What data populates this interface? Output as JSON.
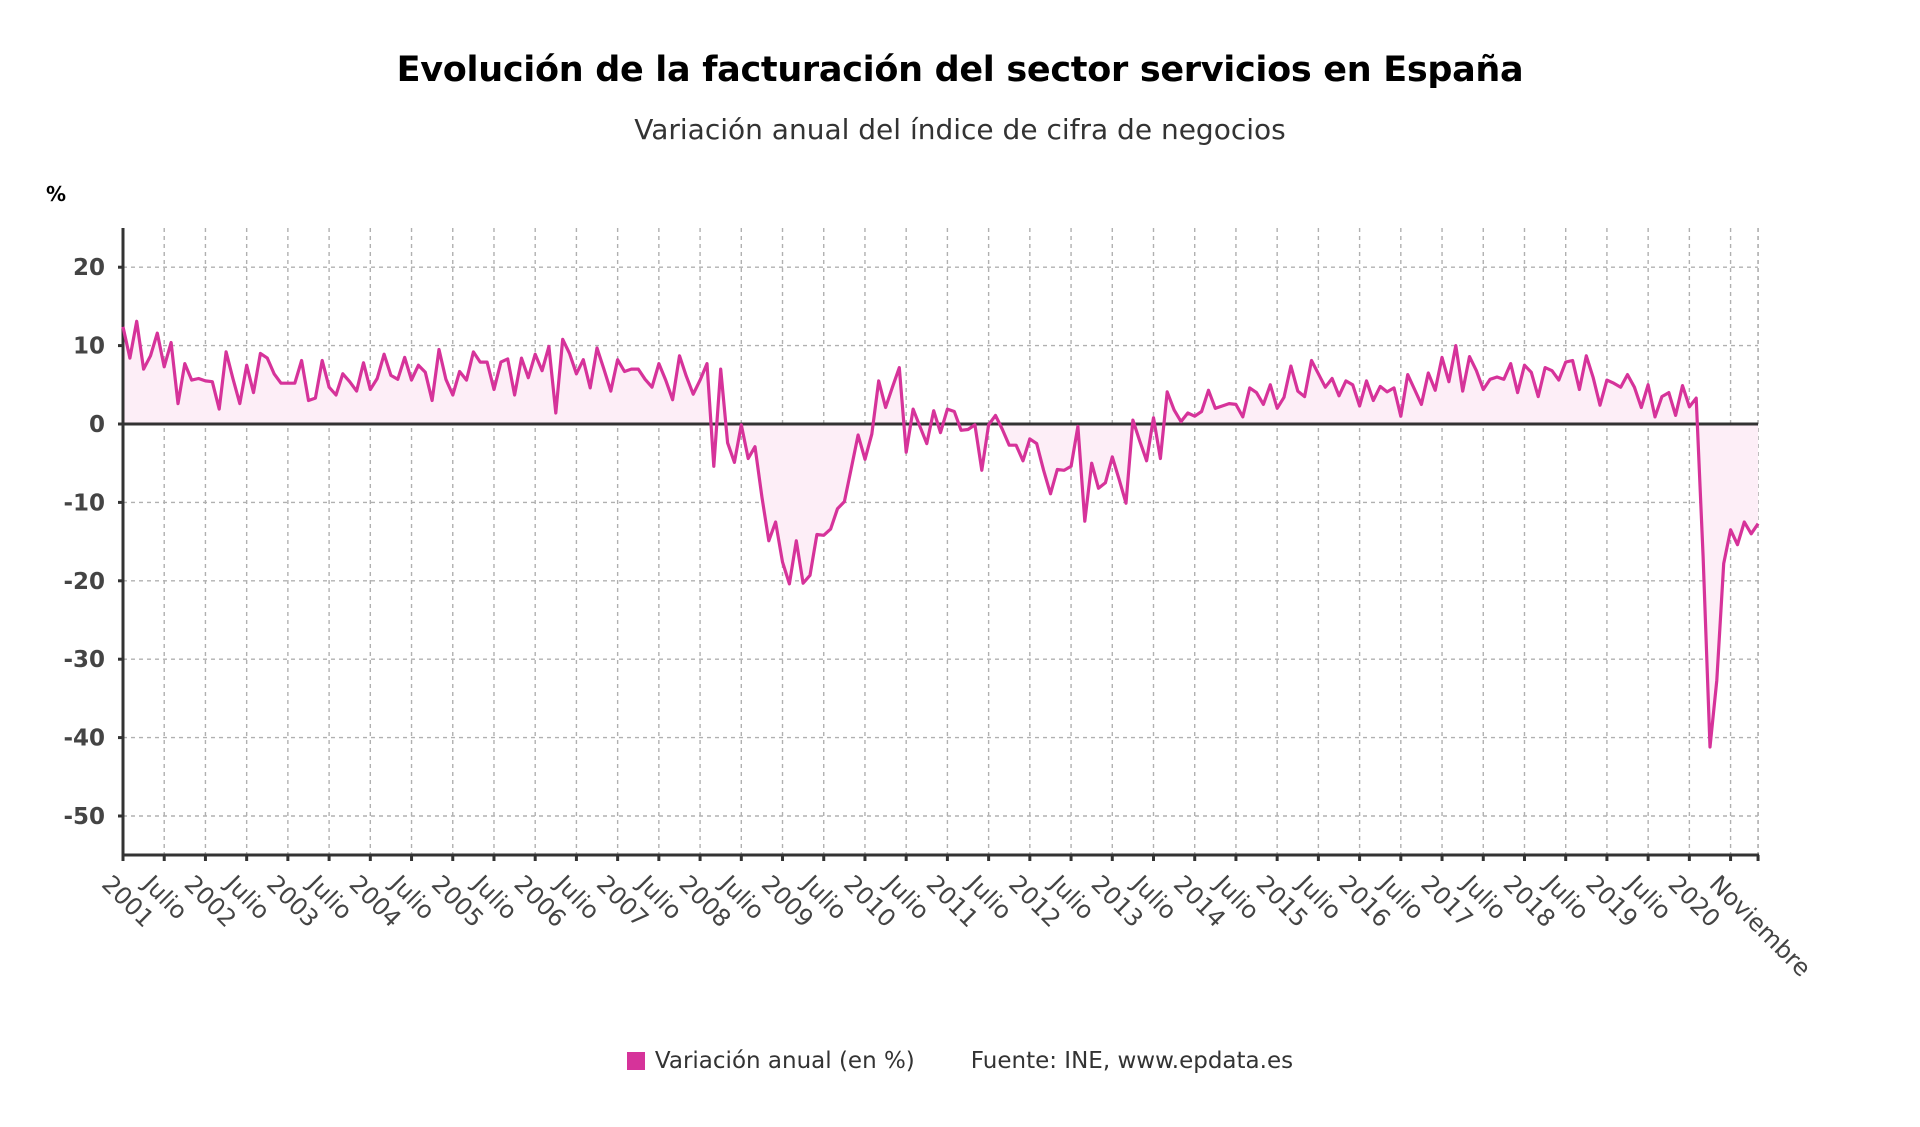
{
  "colors": {
    "line": "#d6339a",
    "fill": "#fdeef7",
    "axis": "#333333",
    "grid": "#b0b0b0",
    "zero": "#333333",
    "tick_label": "#444444"
  },
  "legend": {
    "series_label": "Variación anual (en %)",
    "source_label": "Fuente: INE, www.epdata.es"
  },
  "chart_data": {
    "type": "area",
    "title": "Evolución de la facturación del sector servicios en España",
    "subtitle": "Variación anual del índice de cifra de negocios",
    "ylabel": "%",
    "xlabel": "",
    "ylim": [
      -55,
      25
    ],
    "yticks": [
      20,
      10,
      0,
      -10,
      -20,
      -30,
      -40,
      -50
    ],
    "grid": true,
    "legend_position": "bottom",
    "x_start": "2001-01",
    "x_end": "2020-11",
    "x_frequency": "monthly",
    "xtick_labels": [
      "2001",
      "Julio",
      "2002",
      "Julio",
      "2003",
      "Julio",
      "2004",
      "Julio",
      "2005",
      "Julio",
      "2006",
      "Julio",
      "2007",
      "Julio",
      "2008",
      "Julio",
      "2009",
      "Julio",
      "2010",
      "Julio",
      "2011",
      "Julio",
      "2012",
      "Julio",
      "2013",
      "Julio",
      "2014",
      "Julio",
      "2015",
      "Julio",
      "2016",
      "Julio",
      "2017",
      "Julio",
      "2018",
      "Julio",
      "2019",
      "Julio",
      "2020",
      "Noviembre"
    ],
    "series": [
      {
        "name": "Variación anual (en %)",
        "values": [
          12.4,
          8.4,
          13.1,
          7.0,
          8.7,
          11.6,
          7.3,
          10.4,
          2.6,
          7.7,
          5.6,
          5.8,
          5.5,
          5.4,
          1.9,
          9.2,
          5.8,
          2.6,
          7.5,
          4.0,
          9.0,
          8.4,
          6.4,
          5.2,
          5.2,
          5.2,
          8.1,
          3.0,
          3.3,
          8.1,
          4.7,
          3.7,
          6.4,
          5.4,
          4.2,
          7.8,
          4.4,
          5.8,
          8.9,
          6.2,
          5.7,
          8.5,
          5.6,
          7.5,
          6.6,
          3.0,
          9.5,
          5.7,
          3.7,
          6.7,
          5.6,
          9.2,
          7.9,
          7.9,
          4.4,
          7.9,
          8.3,
          3.7,
          8.4,
          5.9,
          8.9,
          6.8,
          9.9,
          1.4,
          10.8,
          9.0,
          6.4,
          8.2,
          4.6,
          9.7,
          7.0,
          4.2,
          8.2,
          6.7,
          7.0,
          7.0,
          5.7,
          4.7,
          7.7,
          5.6,
          3.1,
          8.7,
          6.1,
          3.8,
          5.6,
          7.7,
          -5.4,
          7.0,
          -2.4,
          -4.9,
          -0.1,
          -4.4,
          -2.9,
          -9.3,
          -14.9,
          -12.5,
          -17.6,
          -20.4,
          -14.9,
          -20.3,
          -19.3,
          -14.1,
          -14.2,
          -13.4,
          -10.8,
          -9.9,
          -5.7,
          -1.4,
          -4.5,
          -1.3,
          5.5,
          2.1,
          4.7,
          7.2,
          -3.6,
          1.9,
          -0.3,
          -2.5,
          1.7,
          -1.1,
          1.9,
          1.6,
          -0.8,
          -0.7,
          -0.1,
          -5.9,
          -0.1,
          1.1,
          -0.7,
          -2.7,
          -2.7,
          -4.7,
          -1.9,
          -2.5,
          -5.9,
          -8.9,
          -5.8,
          -5.9,
          -5.4,
          -0.3,
          -12.4,
          -5.0,
          -8.2,
          -7.5,
          -4.2,
          -7.1,
          -10.1,
          0.5,
          -2.2,
          -4.7,
          0.8,
          -4.4,
          4.1,
          1.8,
          0.3,
          1.4,
          1.0,
          1.6,
          4.3,
          2.0,
          2.3,
          2.6,
          2.5,
          0.9,
          4.6,
          4.0,
          2.5,
          5.0,
          2.0,
          3.4,
          7.4,
          4.2,
          3.5,
          8.1,
          6.4,
          4.7,
          5.8,
          3.6,
          5.5,
          5.0,
          2.3,
          5.5,
          3.0,
          4.8,
          4.1,
          4.6,
          1.0,
          6.3,
          4.4,
          2.5,
          6.5,
          4.3,
          8.5,
          5.4,
          10.0,
          4.2,
          8.6,
          6.8,
          4.4,
          5.7,
          6.0,
          5.7,
          7.7,
          4.0,
          7.5,
          6.6,
          3.5,
          7.2,
          6.8,
          5.6,
          7.9,
          8.1,
          4.4,
          8.7,
          5.9,
          2.4,
          5.6,
          5.2,
          4.7,
          6.3,
          4.7,
          2.1,
          5.0,
          0.9,
          3.5,
          4.0,
          1.1,
          4.9,
          2.2,
          3.3,
          -16.9,
          -41.2,
          -32.7,
          -17.8,
          -13.5,
          -15.4,
          -12.5,
          -14.0,
          -12.7
        ]
      }
    ]
  }
}
